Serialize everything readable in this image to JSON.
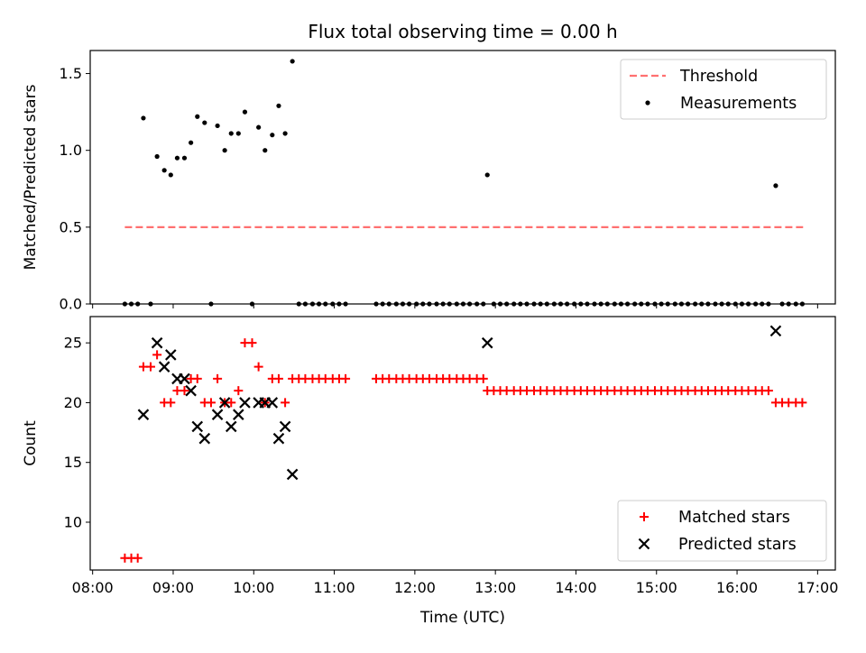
{
  "chart_data": [
    {
      "type": "scatter",
      "title": "Flux total observing time = 0.00 h",
      "xlabel": "",
      "ylabel": "Matched/Predicted stars",
      "x_unit": "hours UTC",
      "xlim": [
        7.97,
        17.22
      ],
      "ylim": [
        0,
        1.65
      ],
      "yticks": [
        0.0,
        0.5,
        1.0,
        1.5
      ],
      "ytick_labels": [
        "0.0",
        "0.5",
        "1.0",
        "1.5"
      ],
      "grid": false,
      "legend_position": "top-right",
      "threshold": {
        "name": "Threshold",
        "value": 0.5,
        "x_range": [
          8.4,
          16.82
        ],
        "color": "#ff7070"
      },
      "series": [
        {
          "name": "Measurements",
          "color": "#000000",
          "points": [
            [
              8.4,
              0
            ],
            [
              8.48,
              0
            ],
            [
              8.56,
              0
            ],
            [
              8.63,
              1.21
            ],
            [
              8.72,
              0
            ],
            [
              8.8,
              0.96
            ],
            [
              8.89,
              0.87
            ],
            [
              8.97,
              0.84
            ],
            [
              9.05,
              0.95
            ],
            [
              9.14,
              0.95
            ],
            [
              9.22,
              1.05
            ],
            [
              9.3,
              1.22
            ],
            [
              9.39,
              1.18
            ],
            [
              9.47,
              0
            ],
            [
              9.55,
              1.16
            ],
            [
              9.64,
              1.0
            ],
            [
              9.72,
              1.11
            ],
            [
              9.81,
              1.11
            ],
            [
              9.89,
              1.25
            ],
            [
              9.98,
              0
            ],
            [
              10.06,
              1.15
            ],
            [
              10.14,
              1.0
            ],
            [
              10.23,
              1.1
            ],
            [
              10.31,
              1.29
            ],
            [
              10.39,
              1.11
            ],
            [
              10.48,
              1.58
            ],
            [
              10.56,
              0
            ],
            [
              10.64,
              0
            ],
            [
              10.73,
              0
            ],
            [
              10.81,
              0
            ],
            [
              10.89,
              0
            ],
            [
              10.98,
              0
            ],
            [
              11.06,
              0
            ],
            [
              11.14,
              0
            ],
            [
              11.52,
              0
            ],
            [
              11.6,
              0
            ],
            [
              11.68,
              0
            ],
            [
              11.77,
              0
            ],
            [
              11.85,
              0
            ],
            [
              11.93,
              0
            ],
            [
              12.02,
              0
            ],
            [
              12.1,
              0
            ],
            [
              12.18,
              0
            ],
            [
              12.27,
              0
            ],
            [
              12.35,
              0
            ],
            [
              12.43,
              0
            ],
            [
              12.52,
              0
            ],
            [
              12.6,
              0
            ],
            [
              12.68,
              0
            ],
            [
              12.77,
              0
            ],
            [
              12.85,
              0
            ],
            [
              12.9,
              0.84
            ],
            [
              12.98,
              0
            ],
            [
              13.06,
              0
            ],
            [
              13.14,
              0
            ],
            [
              13.23,
              0
            ],
            [
              13.31,
              0
            ],
            [
              13.39,
              0
            ],
            [
              13.48,
              0
            ],
            [
              13.56,
              0
            ],
            [
              13.64,
              0
            ],
            [
              13.73,
              0
            ],
            [
              13.81,
              0
            ],
            [
              13.89,
              0
            ],
            [
              13.98,
              0
            ],
            [
              14.06,
              0
            ],
            [
              14.14,
              0
            ],
            [
              14.23,
              0
            ],
            [
              14.31,
              0
            ],
            [
              14.39,
              0
            ],
            [
              14.48,
              0
            ],
            [
              14.56,
              0
            ],
            [
              14.64,
              0
            ],
            [
              14.73,
              0
            ],
            [
              14.81,
              0
            ],
            [
              14.89,
              0
            ],
            [
              14.98,
              0
            ],
            [
              15.06,
              0
            ],
            [
              15.14,
              0
            ],
            [
              15.23,
              0
            ],
            [
              15.31,
              0
            ],
            [
              15.39,
              0
            ],
            [
              15.48,
              0
            ],
            [
              15.56,
              0
            ],
            [
              15.64,
              0
            ],
            [
              15.73,
              0
            ],
            [
              15.81,
              0
            ],
            [
              15.89,
              0
            ],
            [
              15.98,
              0
            ],
            [
              16.06,
              0
            ],
            [
              16.14,
              0
            ],
            [
              16.23,
              0
            ],
            [
              16.31,
              0
            ],
            [
              16.39,
              0
            ],
            [
              16.48,
              0.77
            ],
            [
              16.56,
              0
            ],
            [
              16.64,
              0
            ],
            [
              16.73,
              0
            ],
            [
              16.81,
              0
            ]
          ]
        }
      ]
    },
    {
      "type": "scatter",
      "title": "",
      "xlabel": "Time (UTC)",
      "ylabel": "Count",
      "x_unit": "hours UTC",
      "xlim": [
        7.97,
        17.22
      ],
      "ylim": [
        6,
        27.2
      ],
      "yticks": [
        10,
        15,
        20,
        25
      ],
      "ytick_labels": [
        "10",
        "15",
        "20",
        "25"
      ],
      "xticks": [
        8,
        9,
        10,
        11,
        12,
        13,
        14,
        15,
        16,
        17
      ],
      "xtick_labels": [
        "08:00",
        "09:00",
        "10:00",
        "11:00",
        "12:00",
        "13:00",
        "14:00",
        "15:00",
        "16:00",
        "17:00"
      ],
      "grid": false,
      "legend_position": "bottom-right",
      "series": [
        {
          "name": "Matched stars",
          "marker": "plus",
          "color": "#ff0000",
          "points": [
            [
              8.4,
              7
            ],
            [
              8.48,
              7
            ],
            [
              8.56,
              7
            ],
            [
              8.63,
              23
            ],
            [
              8.72,
              23
            ],
            [
              8.8,
              24
            ],
            [
              8.89,
              20
            ],
            [
              8.97,
              20
            ],
            [
              9.05,
              21
            ],
            [
              9.14,
              21
            ],
            [
              9.22,
              22
            ],
            [
              9.3,
              22
            ],
            [
              9.39,
              20
            ],
            [
              9.47,
              20
            ],
            [
              9.55,
              22
            ],
            [
              9.64,
              20
            ],
            [
              9.72,
              20
            ],
            [
              9.81,
              21
            ],
            [
              9.89,
              25
            ],
            [
              9.98,
              25
            ],
            [
              10.06,
              23
            ],
            [
              10.14,
              20
            ],
            [
              10.23,
              22
            ],
            [
              10.31,
              22
            ],
            [
              10.39,
              20
            ],
            [
              10.48,
              22
            ],
            [
              10.56,
              22
            ],
            [
              10.64,
              22
            ],
            [
              10.73,
              22
            ],
            [
              10.81,
              22
            ],
            [
              10.89,
              22
            ],
            [
              10.98,
              22
            ],
            [
              11.06,
              22
            ],
            [
              11.14,
              22
            ],
            [
              11.52,
              22
            ],
            [
              11.6,
              22
            ],
            [
              11.68,
              22
            ],
            [
              11.77,
              22
            ],
            [
              11.85,
              22
            ],
            [
              11.93,
              22
            ],
            [
              12.02,
              22
            ],
            [
              12.1,
              22
            ],
            [
              12.18,
              22
            ],
            [
              12.27,
              22
            ],
            [
              12.35,
              22
            ],
            [
              12.43,
              22
            ],
            [
              12.52,
              22
            ],
            [
              12.6,
              22
            ],
            [
              12.68,
              22
            ],
            [
              12.77,
              22
            ],
            [
              12.85,
              22
            ],
            [
              12.9,
              21
            ],
            [
              12.98,
              21
            ],
            [
              13.06,
              21
            ],
            [
              13.14,
              21
            ],
            [
              13.23,
              21
            ],
            [
              13.31,
              21
            ],
            [
              13.39,
              21
            ],
            [
              13.48,
              21
            ],
            [
              13.56,
              21
            ],
            [
              13.64,
              21
            ],
            [
              13.73,
              21
            ],
            [
              13.81,
              21
            ],
            [
              13.89,
              21
            ],
            [
              13.98,
              21
            ],
            [
              14.06,
              21
            ],
            [
              14.14,
              21
            ],
            [
              14.23,
              21
            ],
            [
              14.31,
              21
            ],
            [
              14.39,
              21
            ],
            [
              14.48,
              21
            ],
            [
              14.56,
              21
            ],
            [
              14.64,
              21
            ],
            [
              14.73,
              21
            ],
            [
              14.81,
              21
            ],
            [
              14.89,
              21
            ],
            [
              14.98,
              21
            ],
            [
              15.06,
              21
            ],
            [
              15.14,
              21
            ],
            [
              15.23,
              21
            ],
            [
              15.31,
              21
            ],
            [
              15.39,
              21
            ],
            [
              15.48,
              21
            ],
            [
              15.56,
              21
            ],
            [
              15.64,
              21
            ],
            [
              15.73,
              21
            ],
            [
              15.81,
              21
            ],
            [
              15.89,
              21
            ],
            [
              15.98,
              21
            ],
            [
              16.06,
              21
            ],
            [
              16.14,
              21
            ],
            [
              16.23,
              21
            ],
            [
              16.31,
              21
            ],
            [
              16.39,
              21
            ],
            [
              16.48,
              20
            ],
            [
              16.56,
              20
            ],
            [
              16.64,
              20
            ],
            [
              16.73,
              20
            ],
            [
              16.81,
              20
            ]
          ]
        },
        {
          "name": "Predicted stars",
          "marker": "x",
          "color": "#000000",
          "points": [
            [
              8.63,
              19
            ],
            [
              8.8,
              25
            ],
            [
              8.89,
              23
            ],
            [
              8.97,
              24
            ],
            [
              9.05,
              22
            ],
            [
              9.14,
              22
            ],
            [
              9.22,
              21
            ],
            [
              9.3,
              18
            ],
            [
              9.39,
              17
            ],
            [
              9.55,
              19
            ],
            [
              9.64,
              20
            ],
            [
              9.72,
              18
            ],
            [
              9.81,
              19
            ],
            [
              9.89,
              20
            ],
            [
              10.06,
              20
            ],
            [
              10.14,
              20
            ],
            [
              10.23,
              20
            ],
            [
              10.31,
              17
            ],
            [
              10.39,
              18
            ],
            [
              10.48,
              14
            ],
            [
              12.9,
              25
            ],
            [
              16.48,
              26
            ]
          ]
        }
      ]
    }
  ]
}
